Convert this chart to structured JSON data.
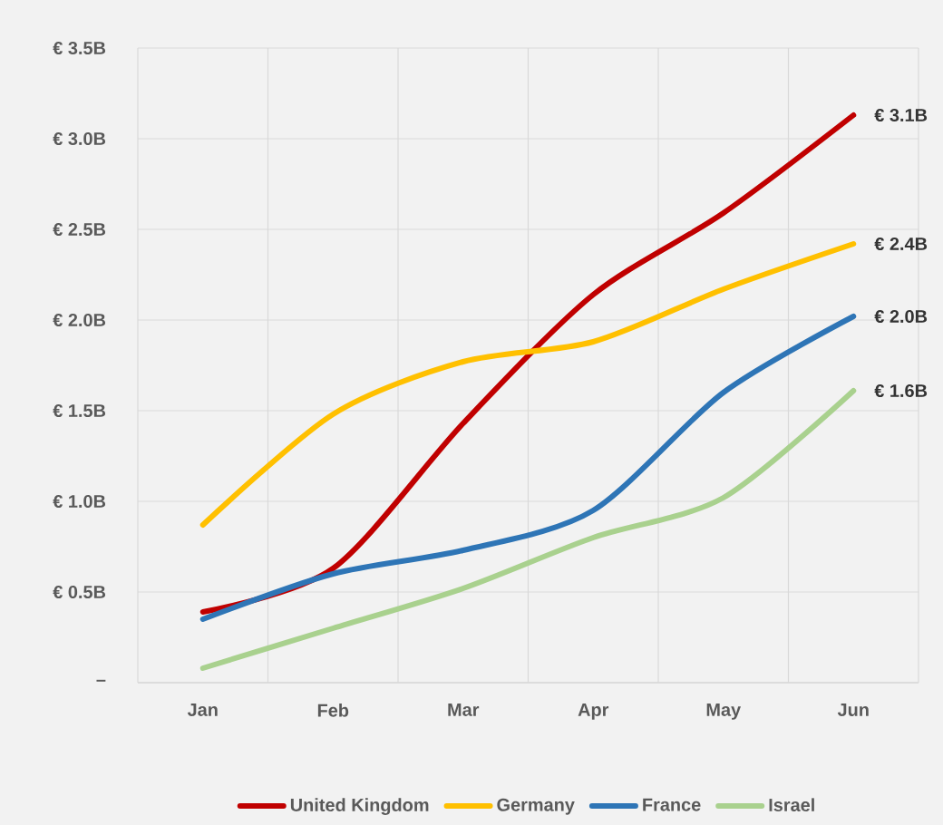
{
  "chart_data": {
    "type": "line",
    "categories": [
      "Jan",
      "Feb",
      "Mar",
      "Apr",
      "May",
      "Jun"
    ],
    "series": [
      {
        "name": "United Kingdom",
        "color": "#c00000",
        "values": [
          0.39,
          0.63,
          1.43,
          2.14,
          2.59,
          3.13
        ],
        "value_labels": [
          null,
          null,
          null,
          null,
          null,
          "€ 3.1B"
        ]
      },
      {
        "name": "Germany",
        "color": "#ffc000",
        "values": [
          0.87,
          1.48,
          1.77,
          1.88,
          2.17,
          2.42
        ],
        "value_labels": [
          null,
          null,
          null,
          null,
          null,
          "€ 2.4B"
        ]
      },
      {
        "name": "France",
        "color": "#2e75b6",
        "values": [
          0.35,
          0.6,
          0.73,
          0.95,
          1.6,
          2.02
        ],
        "value_labels": [
          null,
          null,
          null,
          null,
          null,
          "€ 2.0B"
        ]
      },
      {
        "name": "Israel",
        "color": "#a9d18e",
        "values": [
          0.08,
          0.3,
          0.52,
          0.8,
          1.02,
          1.61
        ],
        "value_labels": [
          null,
          null,
          null,
          null,
          null,
          "€ 1.6B"
        ]
      }
    ],
    "ylim": [
      0,
      3.5
    ],
    "yticks": [
      {
        "value": 0,
        "label": "–"
      },
      {
        "value": 0.5,
        "label": "€ 0.5B"
      },
      {
        "value": 1.0,
        "label": "€ 1.0B"
      },
      {
        "value": 1.5,
        "label": "€ 1.5B"
      },
      {
        "value": 2.0,
        "label": "€ 2.0B"
      },
      {
        "value": 2.5,
        "label": "€ 2.5B"
      },
      {
        "value": 3.0,
        "label": "€ 3.0B"
      },
      {
        "value": 3.5,
        "label": "€ 3.5B"
      }
    ],
    "grid": true,
    "legend": "bottom",
    "marker": "none",
    "line_style": "solid"
  }
}
